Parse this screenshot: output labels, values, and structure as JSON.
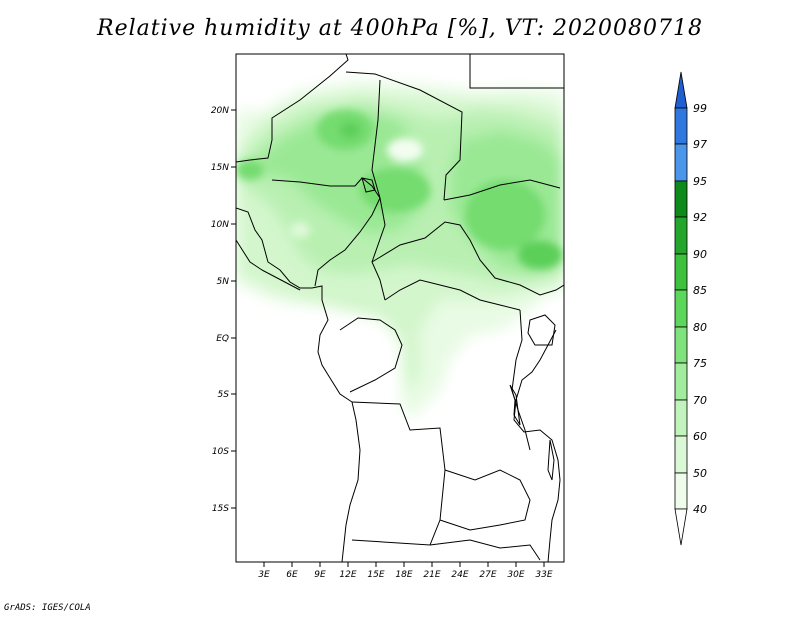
{
  "title": "Relative humidity at 400hPa [%], VT: 2020080718",
  "credit": "GrADS: IGES/COLA",
  "map": {
    "lat_labels": [
      "20N",
      "15N",
      "10N",
      "5N",
      "EQ",
      "5S",
      "10S",
      "15S"
    ],
    "lon_labels": [
      "3E",
      "6E",
      "9E",
      "12E",
      "15E",
      "18E",
      "21E",
      "24E",
      "27E",
      "30E",
      "33E"
    ]
  },
  "colorbar": {
    "labels": [
      "99",
      "97",
      "95",
      "92",
      "90",
      "85",
      "80",
      "75",
      "70",
      "60",
      "50",
      "40"
    ],
    "colors": [
      "#1f5fd0",
      "#2f78e0",
      "#4a96ea",
      "#0e8a1a",
      "#23a62b",
      "#3ec23e",
      "#5cd65b",
      "#80e27d",
      "#a2ec9e",
      "#c1f3bc",
      "#daf8d5",
      "#effcec",
      "#ffffff"
    ]
  }
}
